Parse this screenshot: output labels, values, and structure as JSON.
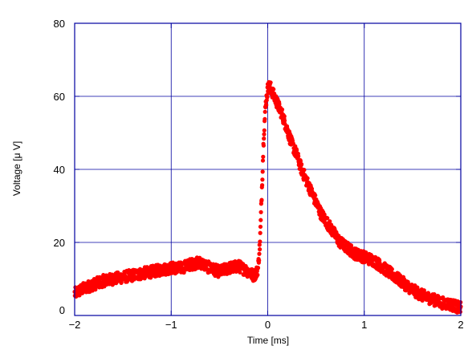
{
  "chart_data": {
    "type": "scatter",
    "xlabel": "Time [ms]",
    "ylabel": "Voltage [μ V]",
    "xlim": [
      -2,
      2
    ],
    "ylim": [
      0,
      80
    ],
    "x_ticks": [
      -2,
      -1,
      0,
      1,
      2
    ],
    "y_ticks": [
      0,
      20,
      40,
      60,
      80
    ],
    "x_tick_labels": [
      "−2",
      "−1",
      "0",
      "1",
      "2"
    ],
    "y_tick_labels": [
      "0",
      "20",
      "40",
      "60",
      "80"
    ],
    "grid": true,
    "colors": {
      "series": "#ff0000",
      "frame": "#0000a0",
      "grid": "#0000a0"
    },
    "series": [
      {
        "x": [
          -2.0,
          -1.9,
          -1.8,
          -1.7,
          -1.6,
          -1.5,
          -1.4,
          -1.3,
          -1.2,
          -1.1,
          -1.0,
          -0.9,
          -0.8,
          -0.7,
          -0.6,
          -0.5,
          -0.4,
          -0.3,
          -0.2,
          -0.15,
          -0.12,
          -0.1,
          -0.08,
          -0.06,
          -0.04,
          -0.02,
          0.0,
          0.02,
          0.05,
          0.1,
          0.15,
          0.2,
          0.25,
          0.3,
          0.35,
          0.4,
          0.45,
          0.5,
          0.55,
          0.6,
          0.65,
          0.7,
          0.75,
          0.8,
          0.85,
          0.9,
          0.95,
          1.0,
          1.1,
          1.2,
          1.3,
          1.4,
          1.5,
          1.6,
          1.7,
          1.8,
          1.9,
          2.0
        ],
        "y": [
          6,
          7.5,
          8.5,
          9.5,
          10,
          10.5,
          11,
          11.5,
          12,
          12.5,
          13,
          13,
          14,
          14.5,
          13,
          12,
          13,
          13.5,
          12,
          11,
          11.5,
          13,
          20,
          35,
          50,
          58,
          62,
          63,
          61,
          58,
          55,
          51,
          47,
          44,
          40,
          37,
          34,
          31,
          28,
          26,
          24,
          22,
          20,
          19,
          18,
          17,
          16.5,
          16,
          15,
          13,
          11,
          9,
          7,
          5.5,
          4.5,
          3.5,
          3,
          2
        ]
      }
    ]
  }
}
